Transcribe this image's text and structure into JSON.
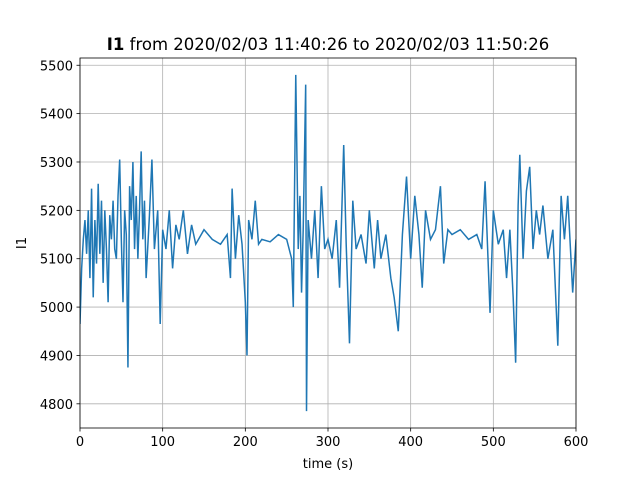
{
  "chart_data": {
    "type": "line",
    "title": [
      "I1",
      " from 2020/02/03 11:40:26 to 2020/02/03 11:50:26"
    ],
    "xlabel": "time (s)",
    "ylabel": "I1",
    "color": "#1f77b4",
    "grid": true,
    "xlim": [
      0,
      600
    ],
    "ylim": [
      4750,
      5515
    ],
    "xticks": [
      0,
      100,
      200,
      300,
      400,
      500,
      600
    ],
    "yticks": [
      4800,
      4900,
      5000,
      5100,
      5200,
      5300,
      5400,
      5500
    ],
    "x": [
      0,
      2,
      4,
      6,
      8,
      10,
      12,
      14,
      16,
      18,
      20,
      22,
      24,
      26,
      28,
      30,
      32,
      34,
      36,
      38,
      40,
      42,
      44,
      46,
      48,
      50,
      52,
      54,
      56,
      58,
      60,
      62,
      64,
      66,
      68,
      70,
      72,
      74,
      76,
      78,
      80,
      84,
      87,
      90,
      94,
      97,
      100,
      104,
      108,
      112,
      116,
      120,
      125,
      130,
      135,
      140,
      150,
      160,
      170,
      178,
      182,
      184,
      188,
      192,
      196,
      200,
      202,
      204,
      208,
      212,
      216,
      220,
      230,
      240,
      250,
      256,
      258,
      261,
      264,
      266,
      268,
      270,
      273,
      274,
      276,
      280,
      284,
      288,
      292,
      296,
      300,
      305,
      310,
      314,
      319,
      322,
      326,
      330,
      334,
      340,
      346,
      350,
      356,
      360,
      364,
      370,
      376,
      380,
      385,
      390,
      395,
      400,
      405,
      410,
      414,
      418,
      424,
      430,
      436,
      440,
      445,
      450,
      460,
      470,
      480,
      486,
      490,
      494,
      496,
      500,
      506,
      512,
      516,
      520,
      524,
      527,
      530,
      532,
      536,
      540,
      544,
      548,
      552,
      556,
      560,
      566,
      572,
      578,
      582,
      586,
      590,
      596,
      600
    ],
    "values": [
      4965,
      5080,
      5140,
      5180,
      5110,
      5200,
      5060,
      5245,
      5020,
      5180,
      5090,
      5255,
      5110,
      5220,
      5050,
      5200,
      5120,
      5010,
      5190,
      5140,
      5220,
      5120,
      5100,
      5230,
      5305,
      5140,
      5010,
      5200,
      5150,
      4875,
      5250,
      5180,
      5300,
      5120,
      5230,
      5100,
      5200,
      5322,
      5140,
      5220,
      5060,
      5190,
      5305,
      5120,
      5200,
      4965,
      5160,
      5120,
      5200,
      5080,
      5170,
      5140,
      5200,
      5110,
      5170,
      5130,
      5160,
      5140,
      5130,
      5150,
      5060,
      5245,
      5100,
      5190,
      5130,
      5010,
      4900,
      5180,
      5140,
      5220,
      5130,
      5140,
      5135,
      5150,
      5140,
      5100,
      5000,
      5480,
      5120,
      5230,
      5030,
      5160,
      5460,
      4785,
      5180,
      5100,
      5200,
      5060,
      5250,
      5120,
      5140,
      5100,
      5180,
      5040,
      5335,
      5130,
      4925,
      5220,
      5120,
      5150,
      5090,
      5200,
      5080,
      5180,
      5100,
      5150,
      5060,
      5020,
      4950,
      5150,
      5270,
      5100,
      5230,
      5150,
      5040,
      5200,
      5140,
      5160,
      5250,
      5090,
      5160,
      5150,
      5160,
      5140,
      5150,
      5120,
      5260,
      5080,
      4988,
      5200,
      5130,
      5160,
      5060,
      5160,
      5020,
      4885,
      5210,
      5315,
      5100,
      5240,
      5290,
      5120,
      5200,
      5150,
      5210,
      5100,
      5160,
      4920,
      5230,
      5140,
      5230,
      5030,
      5140
    ]
  }
}
